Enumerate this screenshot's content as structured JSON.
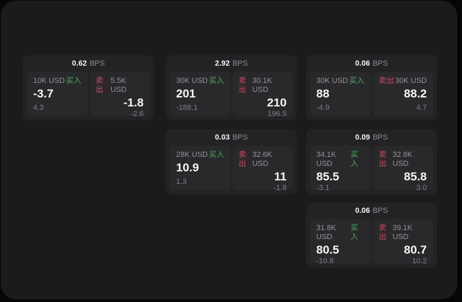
{
  "labels": {
    "bps": "BPS",
    "buy": "买入",
    "sell": "卖出"
  },
  "colors": {
    "buy_green": "#4caf5f",
    "sell_red": "#cd4960",
    "panel_bg": "#1b1b1c",
    "card_bg": "#232325",
    "tile_bg": "#29292c"
  },
  "cards": [
    {
      "bps": "0.62",
      "buy": {
        "amount": "10K USD",
        "price": "-3.7",
        "delta": "4.3"
      },
      "sell": {
        "amount": "5.5K USD",
        "price": "-1.8",
        "delta": "-2.6"
      }
    },
    {
      "bps": "2.92",
      "buy": {
        "amount": "30K USD",
        "price": "201",
        "delta": "-188.1"
      },
      "sell": {
        "amount": "30.1K USD",
        "price": "210",
        "delta": "196.5"
      }
    },
    {
      "bps": "0.06",
      "buy": {
        "amount": "30K USD",
        "price": "88",
        "delta": "-4.9"
      },
      "sell": {
        "amount": "30K USD",
        "price": "88.2",
        "delta": "4.7"
      }
    },
    {
      "bps": "0.03",
      "buy": {
        "amount": "28K USD",
        "price": "10.9",
        "delta": "1.3"
      },
      "sell": {
        "amount": "32.6K USD",
        "price": "11",
        "delta": "-1.8"
      }
    },
    {
      "bps": "0.09",
      "buy": {
        "amount": "34.1K USD",
        "price": "85.5",
        "delta": "-3.1"
      },
      "sell": {
        "amount": "32.8K USD",
        "price": "85.8",
        "delta": "3.0"
      }
    },
    {
      "bps": "0.06",
      "buy": {
        "amount": "31.8K USD",
        "price": "80.5",
        "delta": "-10.8"
      },
      "sell": {
        "amount": "39.1K USD",
        "price": "80.7",
        "delta": "10.2"
      }
    }
  ]
}
